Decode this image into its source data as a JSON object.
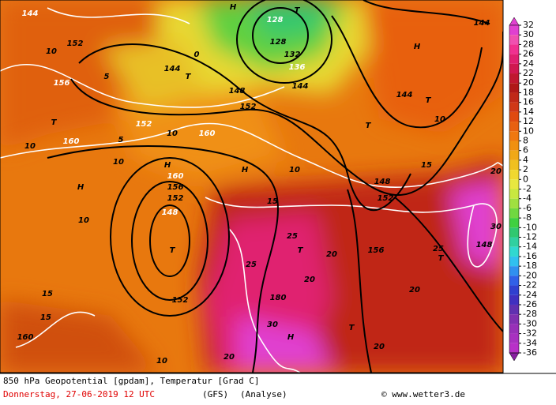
{
  "map": {
    "labels": [
      "144",
      "152",
      "10",
      "156",
      "T",
      "10",
      "160",
      "5",
      "144",
      "T",
      "148",
      "152",
      "152",
      "5",
      "10",
      "160",
      "H",
      "10",
      "160",
      "156",
      "152",
      "148",
      "T",
      "152",
      "H",
      "10",
      "15",
      "15",
      "160",
      "10",
      "20",
      "H",
      "T",
      "128",
      "128",
      "132",
      "136",
      "144",
      "0",
      "H",
      "144",
      "144",
      "T",
      "10",
      "T",
      "H",
      "10",
      "15",
      "25",
      "T",
      "20",
      "25",
      "180",
      "30",
      "H",
      "T",
      "20",
      "20",
      "25",
      "T",
      "30",
      "148",
      "20",
      "15",
      "156",
      "152",
      "20",
      "148"
    ]
  },
  "colorbar": {
    "ticks": [
      32,
      30,
      28,
      26,
      24,
      22,
      20,
      18,
      16,
      14,
      12,
      10,
      8,
      6,
      4,
      2,
      0,
      -2,
      -4,
      -6,
      -8,
      -10,
      -12,
      -14,
      -16,
      -18,
      -20,
      -22,
      -24,
      -26,
      -28,
      -30,
      -32,
      -34,
      -36
    ],
    "colors": [
      "#e040d0",
      "#f050b0",
      "#f03090",
      "#e02070",
      "#d01850",
      "#c01830",
      "#b01818",
      "#c02818",
      "#d03818",
      "#e04a10",
      "#e86010",
      "#f07810",
      "#f09010",
      "#f0a818",
      "#f0c020",
      "#f0d830",
      "#e8e840",
      "#c8e840",
      "#a0e040",
      "#70d840",
      "#40d040",
      "#30c870",
      "#30d0a0",
      "#30d8d0",
      "#30c0f0",
      "#3090f0",
      "#3060e8",
      "#3040d0",
      "#4030c0",
      "#6030b0",
      "#8030b0",
      "#9830b8",
      "#a830c0",
      "#b830c8",
      "#8820a0"
    ]
  },
  "footer": {
    "title": "850 hPa Geopotential [gpdam], Temperatur [Grad C]",
    "date": "Donnerstag, 27-06-2019  12 UTC",
    "model": "(GFS)",
    "run": "(Analyse)",
    "credit": "© www.wetter3.de"
  }
}
